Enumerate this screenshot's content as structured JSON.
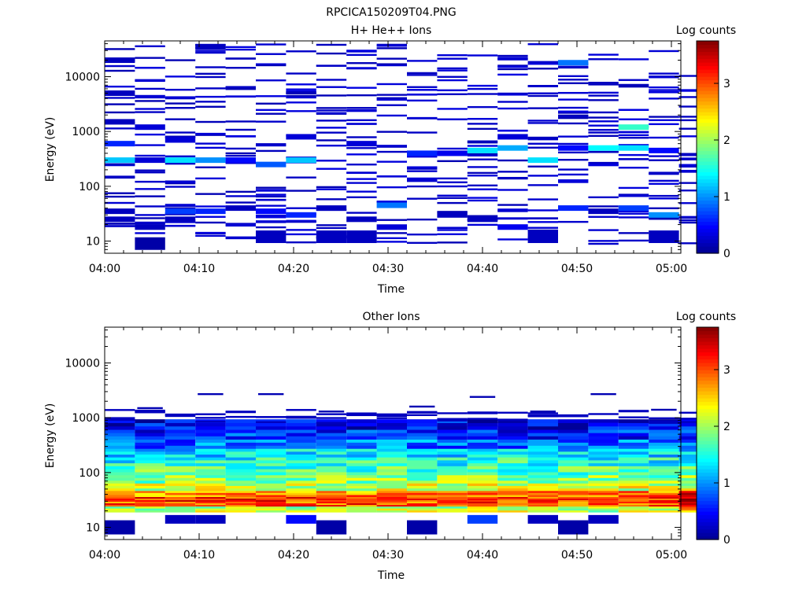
{
  "figure": {
    "title": "RPCICA150209T04.PNG"
  },
  "colormap": [
    "#00008f",
    "#0000ff",
    "#007fff",
    "#00ffff",
    "#7fff7f",
    "#ffff00",
    "#ff7f00",
    "#ff0000",
    "#7f0000"
  ],
  "chart_data": [
    {
      "type": "heatmap",
      "title": "H+ He++ Ions",
      "xlabel": "Time",
      "ylabel": "Energy (eV)",
      "colorbar_label": "Log counts",
      "x_ticks": [
        "04:00",
        "04:10",
        "04:20",
        "04:30",
        "04:40",
        "04:50",
        "05:00"
      ],
      "y_ticks": [
        "10",
        "100",
        "1000",
        "10000"
      ],
      "colorbar_ticks": [
        "0",
        "1",
        "2",
        "3"
      ],
      "xlim": [
        "04:00",
        "05:01"
      ],
      "ylim": [
        6,
        45000
      ],
      "y_scale": "log",
      "zlim": [
        0,
        3.75
      ],
      "time_bins_min": [
        0,
        3.2,
        6.4,
        9.6,
        12.8,
        16,
        19.2,
        22.4,
        25.6,
        28.8,
        32,
        35.2,
        38.4,
        41.6,
        44.8,
        48,
        51.2,
        54.4,
        57.6,
        60.8
      ],
      "cells": [
        {
          "t": 0,
          "e": 35,
          "v": 0.2
        },
        {
          "t": 0,
          "e": 25,
          "v": 0.2
        },
        {
          "t": 0,
          "e": 300,
          "v": 1.2
        },
        {
          "t": 0,
          "e": 600,
          "v": 0.6
        },
        {
          "t": 0,
          "e": 1500,
          "v": 0.2
        },
        {
          "t": 0,
          "e": 5000,
          "v": 0.2
        },
        {
          "t": 0,
          "e": 20000,
          "v": 0.2
        },
        {
          "t": 3.2,
          "e": 9,
          "v": 0.1
        },
        {
          "t": 3.2,
          "e": 18,
          "v": 0.2
        },
        {
          "t": 3.2,
          "e": 300,
          "v": 0.3
        },
        {
          "t": 3.2,
          "e": 1200,
          "v": 0.3
        },
        {
          "t": 6.4,
          "e": 25,
          "v": 0.2
        },
        {
          "t": 6.4,
          "e": 35,
          "v": 0.7
        },
        {
          "t": 6.4,
          "e": 300,
          "v": 1.3
        },
        {
          "t": 6.4,
          "e": 700,
          "v": 0.3
        },
        {
          "t": 9.6,
          "e": 35,
          "v": 0.6
        },
        {
          "t": 9.6,
          "e": 300,
          "v": 1.0
        },
        {
          "t": 9.6,
          "e": 35000,
          "v": 0.2
        },
        {
          "t": 12.8,
          "e": 40,
          "v": 0.2
        },
        {
          "t": 12.8,
          "e": 300,
          "v": 0.5
        },
        {
          "t": 16,
          "e": 12,
          "v": 0.2
        },
        {
          "t": 16,
          "e": 35,
          "v": 0.5
        },
        {
          "t": 16,
          "e": 250,
          "v": 0.8
        },
        {
          "t": 19.2,
          "e": 30,
          "v": 0.6
        },
        {
          "t": 19.2,
          "e": 300,
          "v": 1.2
        },
        {
          "t": 19.2,
          "e": 800,
          "v": 0.3
        },
        {
          "t": 22.4,
          "e": 12,
          "v": 0.2
        },
        {
          "t": 22.4,
          "e": 40,
          "v": 0.2
        },
        {
          "t": 25.6,
          "e": 12,
          "v": 0.2
        },
        {
          "t": 25.6,
          "e": 25,
          "v": 0.2
        },
        {
          "t": 25.6,
          "e": 600,
          "v": 0.3
        },
        {
          "t": 28.8,
          "e": 18,
          "v": 0.3
        },
        {
          "t": 28.8,
          "e": 45,
          "v": 0.9
        },
        {
          "t": 32,
          "e": 400,
          "v": 0.6
        },
        {
          "t": 35.2,
          "e": 30,
          "v": 0.2
        },
        {
          "t": 35.2,
          "e": 400,
          "v": 0.4
        },
        {
          "t": 38.4,
          "e": 25,
          "v": 0.2
        },
        {
          "t": 38.4,
          "e": 450,
          "v": 1.3
        },
        {
          "t": 41.6,
          "e": 18,
          "v": 0.4
        },
        {
          "t": 41.6,
          "e": 500,
          "v": 1.1
        },
        {
          "t": 41.6,
          "e": 800,
          "v": 0.3
        },
        {
          "t": 44.8,
          "e": 12,
          "v": 0.2
        },
        {
          "t": 44.8,
          "e": 300,
          "v": 1.3
        },
        {
          "t": 48,
          "e": 40,
          "v": 0.6
        },
        {
          "t": 48,
          "e": 500,
          "v": 0.5
        },
        {
          "t": 48,
          "e": 18000,
          "v": 0.9
        },
        {
          "t": 51.2,
          "e": 35,
          "v": 0.2
        },
        {
          "t": 51.2,
          "e": 500,
          "v": 1.4
        },
        {
          "t": 54.4,
          "e": 40,
          "v": 0.7
        },
        {
          "t": 54.4,
          "e": 1200,
          "v": 1.6
        },
        {
          "t": 54.4,
          "e": 500,
          "v": 1.3
        },
        {
          "t": 57.6,
          "e": 12,
          "v": 0.2
        },
        {
          "t": 57.6,
          "e": 30,
          "v": 1.0
        },
        {
          "t": 57.6,
          "e": 450,
          "v": 0.5
        }
      ]
    },
    {
      "type": "heatmap",
      "title": "Other Ions",
      "xlabel": "Time",
      "ylabel": "Energy (eV)",
      "colorbar_label": "Log counts",
      "x_ticks": [
        "04:00",
        "04:10",
        "04:20",
        "04:30",
        "04:40",
        "04:50",
        "05:00"
      ],
      "y_ticks": [
        "10",
        "100",
        "1000",
        "10000"
      ],
      "colorbar_ticks": [
        "0",
        "1",
        "2",
        "3"
      ],
      "xlim": [
        "04:00",
        "05:01"
      ],
      "ylim": [
        6,
        45000
      ],
      "y_scale": "log",
      "zlim": [
        0,
        3.75
      ],
      "time_bins_min": [
        0,
        3.2,
        6.4,
        9.6,
        12.8,
        16,
        19.2,
        22.4,
        25.6,
        28.8,
        32,
        35.2,
        38.4,
        41.6,
        44.8,
        48,
        51.2,
        54.4,
        57.6,
        60.8
      ],
      "profile_by_energy": [
        {
          "e": 22,
          "v": 2.1
        },
        {
          "e": 27,
          "v": 3.0
        },
        {
          "e": 33,
          "v": 3.1
        },
        {
          "e": 40,
          "v": 2.8
        },
        {
          "e": 55,
          "v": 2.2
        },
        {
          "e": 75,
          "v": 1.9
        },
        {
          "e": 110,
          "v": 1.7
        },
        {
          "e": 160,
          "v": 1.5
        },
        {
          "e": 230,
          "v": 1.3
        },
        {
          "e": 330,
          "v": 0.9
        },
        {
          "e": 500,
          "v": 0.6
        },
        {
          "e": 750,
          "v": 0.4
        }
      ],
      "low_energy_cells": [
        {
          "t": 0,
          "e": 10,
          "v": 0.1
        },
        {
          "t": 6.4,
          "e": 14,
          "v": 0.2
        },
        {
          "t": 9.6,
          "e": 14,
          "v": 0.2
        },
        {
          "t": 19.2,
          "e": 14,
          "v": 0.5
        },
        {
          "t": 22.4,
          "e": 10,
          "v": 0.1
        },
        {
          "t": 32,
          "e": 10,
          "v": 0.1
        },
        {
          "t": 38.4,
          "e": 14,
          "v": 0.7
        },
        {
          "t": 44.8,
          "e": 14,
          "v": 0.2
        },
        {
          "t": 48,
          "e": 10,
          "v": 0.1
        },
        {
          "t": 51.2,
          "e": 14,
          "v": 0.2
        }
      ],
      "high_energy_lines": [
        {
          "t": 3.2,
          "e": 1500
        },
        {
          "t": 9.6,
          "e": 2700
        },
        {
          "t": 16,
          "e": 2700
        },
        {
          "t": 22.4,
          "e": 1300
        },
        {
          "t": 32,
          "e": 1600
        },
        {
          "t": 38.4,
          "e": 2400
        },
        {
          "t": 44.8,
          "e": 1300
        },
        {
          "t": 51.2,
          "e": 2700
        },
        {
          "t": 57.6,
          "e": 1400
        }
      ]
    }
  ]
}
